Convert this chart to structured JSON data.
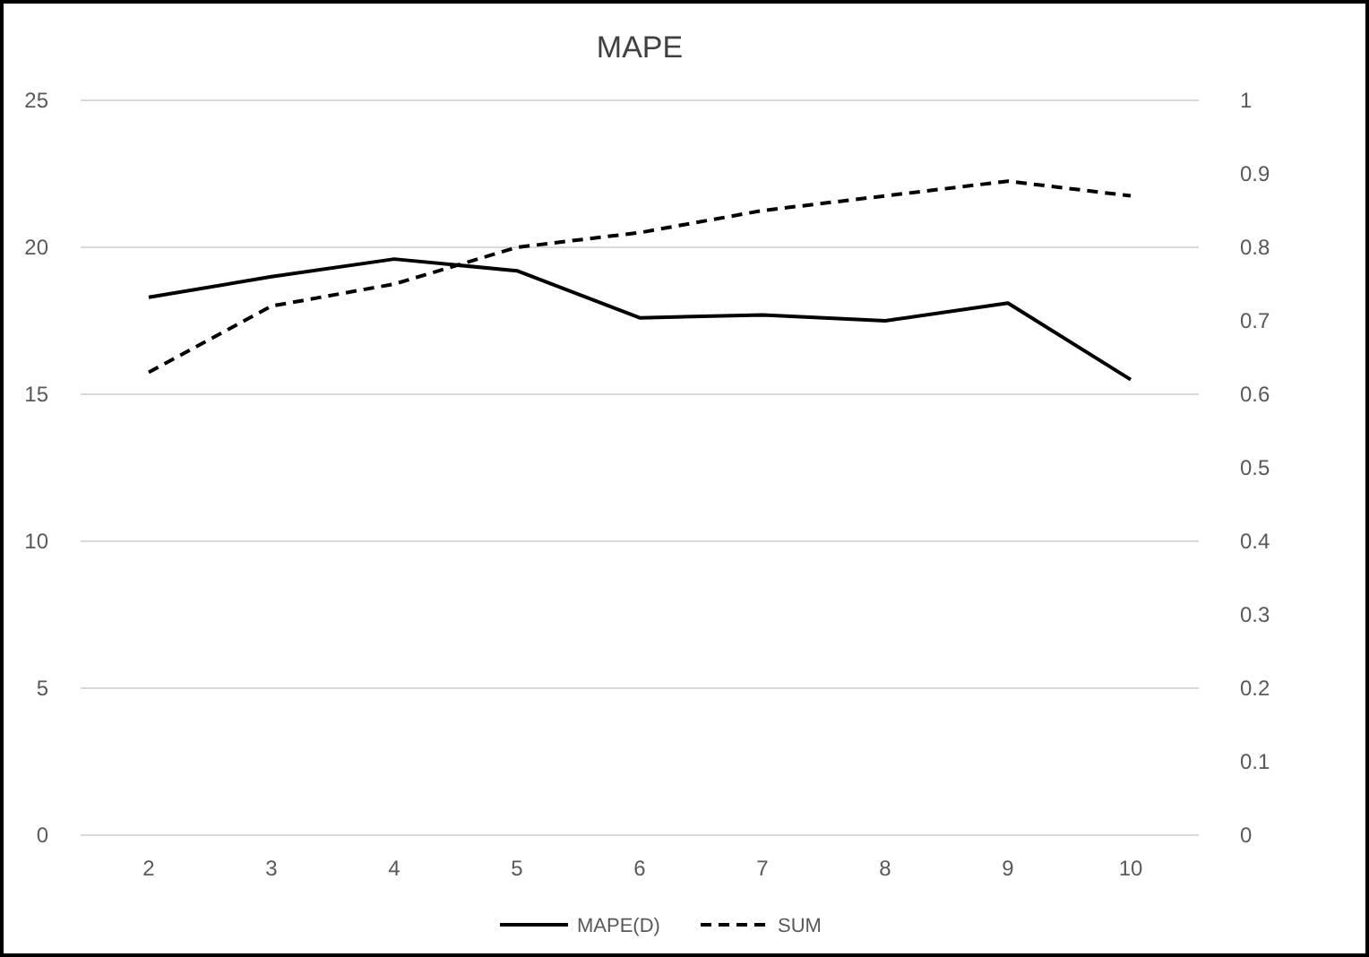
{
  "chart_data": {
    "type": "line",
    "title": "MAPE",
    "categories": [
      "2",
      "3",
      "4",
      "5",
      "6",
      "7",
      "8",
      "9",
      "10"
    ],
    "series": [
      {
        "name": "MAPE(D)",
        "color": "#000000",
        "values": [
          18.3,
          19.0,
          19.6,
          19.2,
          17.6,
          17.7,
          17.5,
          18.1,
          15.5
        ],
        "line_style": "solid"
      },
      {
        "name": "SUM",
        "color": "#000000",
        "axis": "y2",
        "values": [
          0.63,
          0.72,
          0.75,
          0.8,
          0.82,
          0.85,
          0.87,
          0.89,
          0.87
        ],
        "line_style": "dashed"
      }
    ],
    "ylim": [
      0,
      25
    ],
    "yticks": [
      0,
      5,
      10,
      15,
      20,
      25
    ],
    "y2lim": [
      0,
      1
    ],
    "y2ticks": [
      0,
      0.1,
      0.2,
      0.3,
      0.4,
      0.5,
      0.6,
      0.7,
      0.8,
      0.9,
      1
    ],
    "grid": "y",
    "legend": "bottom",
    "marker": "none"
  }
}
